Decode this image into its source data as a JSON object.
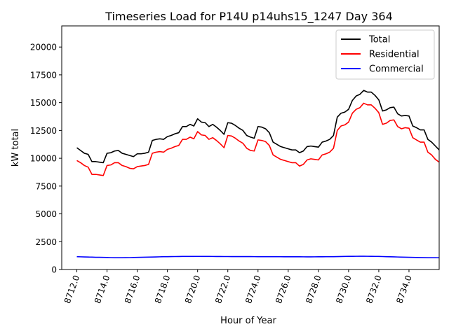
{
  "chart_data": {
    "type": "line",
    "title": "Timeseries Load for P14U p14uhs15_1247  Day 364",
    "xlabel": "Hour of Year",
    "ylabel": "kW total",
    "xlim": [
      8711.0,
      8736.0
    ],
    "ylim": [
      0,
      21900
    ],
    "xticks": [
      8712,
      8714,
      8716,
      8718,
      8720,
      8722,
      8724,
      8726,
      8728,
      8730,
      8732,
      8734
    ],
    "xtick_labels": [
      "8712.0",
      "8714.0",
      "8716.0",
      "8718.0",
      "8720.0",
      "8722.0",
      "8724.0",
      "8726.0",
      "8728.0",
      "8730.0",
      "8732.0",
      "8734.0"
    ],
    "yticks": [
      0,
      2500,
      5000,
      7500,
      10000,
      12500,
      15000,
      17500,
      20000
    ],
    "ytick_labels": [
      "0",
      "2500",
      "5000",
      "7500",
      "10000",
      "12500",
      "15000",
      "17500",
      "20000"
    ],
    "legend_position": "top-right",
    "x_start": 8712.0,
    "x_step": 0.25,
    "series": [
      {
        "name": "Total",
        "color": "#000000",
        "values": [
          10950,
          10700,
          10450,
          10350,
          9700,
          9700,
          9650,
          9600,
          10450,
          10500,
          10650,
          10700,
          10450,
          10350,
          10250,
          10150,
          10400,
          10400,
          10450,
          10550,
          11600,
          11700,
          11750,
          11700,
          11950,
          12050,
          12200,
          12300,
          12850,
          12850,
          13050,
          12900,
          13550,
          13250,
          13200,
          12850,
          13050,
          12800,
          12500,
          12150,
          13200,
          13150,
          12950,
          12700,
          12500,
          12050,
          11900,
          11800,
          12850,
          12800,
          12650,
          12300,
          11450,
          11250,
          11050,
          10950,
          10850,
          10750,
          10750,
          10500,
          10650,
          11050,
          11100,
          11050,
          11000,
          11450,
          11550,
          11700,
          12050,
          13700,
          14050,
          14150,
          14400,
          15200,
          15600,
          15750,
          16100,
          15950,
          15950,
          15650,
          15250,
          14250,
          14350,
          14550,
          14600,
          14000,
          13800,
          13850,
          13800,
          12900,
          12750,
          12550,
          12550,
          11700,
          11450,
          11100,
          10750
        ]
      },
      {
        "name": "Residential",
        "color": "#ff0000",
        "values": [
          9800,
          9600,
          9350,
          9200,
          8550,
          8550,
          8500,
          8450,
          9350,
          9400,
          9600,
          9600,
          9350,
          9250,
          9100,
          9050,
          9250,
          9300,
          9350,
          9450,
          10450,
          10550,
          10600,
          10550,
          10800,
          10900,
          11050,
          11150,
          11700,
          11700,
          11900,
          11750,
          12400,
          12100,
          12050,
          11700,
          11850,
          11600,
          11300,
          10950,
          12050,
          12000,
          11800,
          11550,
          11350,
          10900,
          10700,
          10650,
          11650,
          11600,
          11500,
          11150,
          10300,
          10100,
          9900,
          9800,
          9700,
          9600,
          9600,
          9300,
          9450,
          9850,
          9950,
          9900,
          9850,
          10300,
          10400,
          10550,
          10900,
          12500,
          12900,
          13000,
          13250,
          14050,
          14400,
          14550,
          14950,
          14800,
          14800,
          14500,
          14100,
          13050,
          13150,
          13400,
          13450,
          12850,
          12650,
          12750,
          12700,
          11850,
          11650,
          11450,
          11450,
          10550,
          10300,
          9900,
          9650
        ]
      },
      {
        "name": "Commercial",
        "color": "#0000ff",
        "values": [
          1150,
          1140,
          1130,
          1120,
          1110,
          1100,
          1095,
          1090,
          1080,
          1070,
          1060,
          1060,
          1060,
          1065,
          1070,
          1080,
          1090,
          1100,
          1105,
          1110,
          1120,
          1130,
          1140,
          1150,
          1155,
          1160,
          1165,
          1170,
          1175,
          1175,
          1178,
          1178,
          1180,
          1178,
          1175,
          1175,
          1172,
          1170,
          1168,
          1165,
          1165,
          1163,
          1162,
          1160,
          1160,
          1158,
          1158,
          1156,
          1155,
          1155,
          1153,
          1152,
          1150,
          1150,
          1148,
          1146,
          1145,
          1144,
          1143,
          1142,
          1140,
          1138,
          1138,
          1140,
          1142,
          1145,
          1148,
          1150,
          1152,
          1160,
          1170,
          1178,
          1182,
          1185,
          1188,
          1190,
          1190,
          1188,
          1185,
          1180,
          1175,
          1165,
          1155,
          1145,
          1135,
          1125,
          1115,
          1105,
          1095,
          1088,
          1080,
          1072,
          1065,
          1060,
          1058,
          1056,
          1055
        ]
      }
    ]
  }
}
